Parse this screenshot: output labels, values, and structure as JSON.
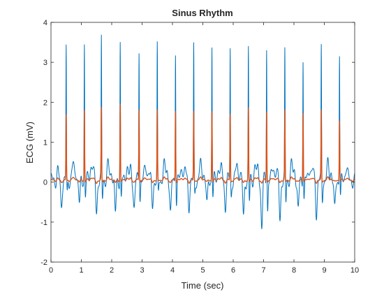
{
  "chart_data": {
    "type": "line",
    "title": "Sinus Rhythm",
    "xlabel": "Time (sec)",
    "ylabel": "ECG (mV)",
    "xlim": [
      0,
      10
    ],
    "ylim": [
      -2,
      4
    ],
    "xticks": [
      0,
      1,
      2,
      3,
      4,
      5,
      6,
      7,
      8,
      9,
      10
    ],
    "yticks": [
      -2,
      -1,
      0,
      1,
      2,
      3,
      4
    ],
    "grid": false,
    "beat_times": [
      0.5,
      1.1,
      1.66,
      2.28,
      2.9,
      3.5,
      4.1,
      4.7,
      5.3,
      5.9,
      6.5,
      7.1,
      7.7,
      8.3,
      8.9,
      9.5
    ],
    "series": [
      {
        "color": "#0072BD",
        "baseline": 0.05,
        "noise_amplitude": 0.4,
        "r_peaks": [
          3.38,
          3.5,
          3.52,
          3.57,
          3.38,
          3.35,
          3.38,
          3.35,
          3.48,
          3.35,
          3.35,
          3.48,
          3.2,
          3.22,
          3.3,
          3.28
        ],
        "troughs": [
          -0.6,
          -0.55,
          -0.72,
          -0.82,
          -0.62,
          -0.6,
          -0.8,
          -0.6,
          -0.6,
          -0.6,
          -0.9,
          -1.15,
          -0.9,
          -0.75,
          -0.75,
          -0.75
        ]
      },
      {
        "color": "#D95319",
        "baseline": 0.05,
        "noise_amplitude": 0.06,
        "r_peaks": [
          1.68,
          1.8,
          1.85,
          1.95,
          1.82,
          1.78,
          1.8,
          1.75,
          1.78,
          1.7,
          1.85,
          1.78,
          1.78,
          1.75,
          1.78,
          1.55
        ],
        "troughs": [
          0.0,
          0.0,
          -0.02,
          -0.02,
          0.0,
          0.0,
          -0.02,
          0.0,
          0.0,
          0.0,
          -0.02,
          -0.02,
          0.0,
          0.0,
          0.0,
          0.0
        ]
      }
    ]
  }
}
